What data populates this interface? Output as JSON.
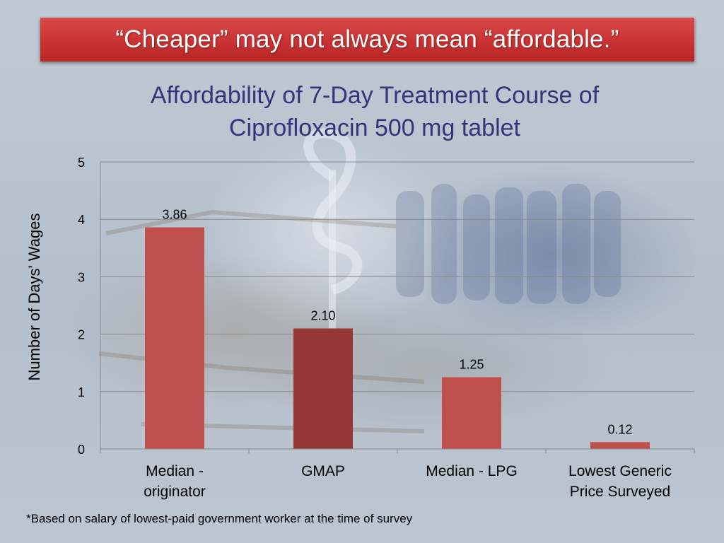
{
  "slide": {
    "banner_title": "“Cheaper” may not always mean “affordable.”",
    "footnote": "*Based on salary of lowest-paid government worker at the time of survey"
  },
  "chart_data": {
    "type": "bar",
    "title_lines": [
      "Affordability of 7-Day Treatment Course of",
      "Ciprofloxacin 500 mg tablet"
    ],
    "categories": [
      [
        "Median -",
        "originator"
      ],
      [
        "GMAP"
      ],
      [
        "Median - LPG"
      ],
      [
        "Lowest Generic",
        "Price Surveyed"
      ]
    ],
    "values": [
      3.86,
      2.1,
      1.25,
      0.12
    ],
    "value_labels": [
      "3.86",
      "2.10",
      "1.25",
      "0.12"
    ],
    "bar_colors": [
      "#c0504d",
      "#953735",
      "#c0504d",
      "#c0504d"
    ],
    "ylabel": "Number of Days' Wages",
    "xlabel": "",
    "ylim": [
      0,
      5
    ],
    "yticks": [
      0,
      1,
      2,
      3,
      4,
      5
    ],
    "grid": true,
    "legend": "none"
  }
}
